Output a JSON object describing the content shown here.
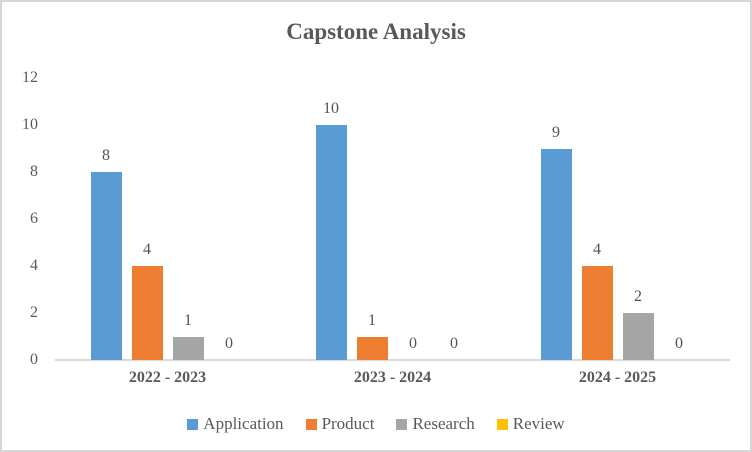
{
  "chart_data": {
    "type": "bar",
    "title": "Capstone Analysis",
    "categories": [
      "2022 - 2023",
      "2023 - 2024",
      "2024 - 2025"
    ],
    "series": [
      {
        "name": "Application",
        "color": "#5B9BD5",
        "values": [
          8,
          10,
          9
        ]
      },
      {
        "name": "Product",
        "color": "#ED7D31",
        "values": [
          4,
          1,
          4
        ]
      },
      {
        "name": "Research",
        "color": "#A5A5A5",
        "values": [
          1,
          0,
          2
        ]
      },
      {
        "name": "Review",
        "color": "#FFC000",
        "values": [
          0,
          0,
          0
        ]
      }
    ],
    "y_axis": {
      "min": 0,
      "max": 12,
      "step": 2,
      "tick_labels": [
        "0",
        "2",
        "4",
        "6",
        "8",
        "10",
        "12"
      ]
    },
    "data_labels_shown": true,
    "grid": false,
    "legend_position": "bottom"
  },
  "colors": {
    "text": "#595959",
    "axis_line": "#D9D9D9",
    "frame_border": "#D6D6D6",
    "background": "#FFFFFF"
  }
}
